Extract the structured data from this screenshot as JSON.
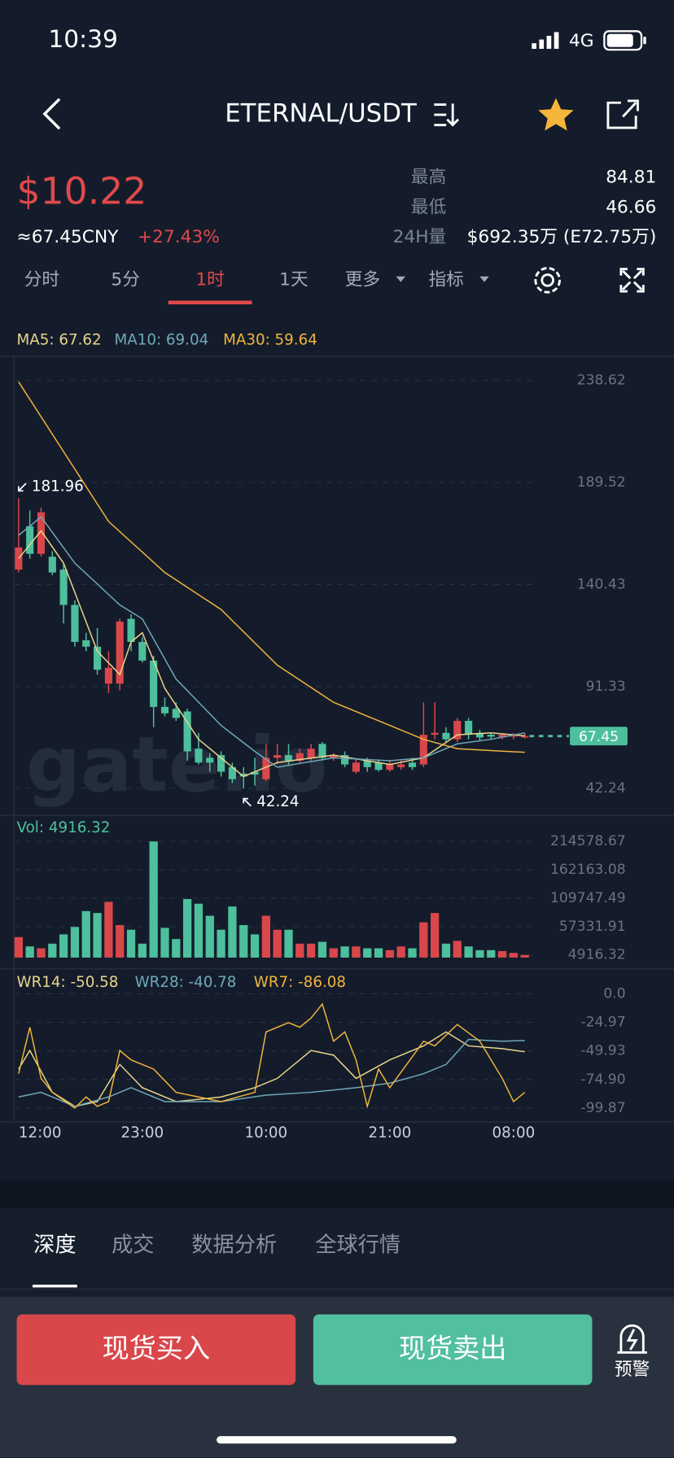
{
  "status_bar": {
    "time": "10:39",
    "network": "4G"
  },
  "header": {
    "title": "ETERNAL/USDT"
  },
  "ticker": {
    "price": "$10.22",
    "cny": "≈67.45CNY",
    "change": "+27.43%",
    "stats": [
      {
        "label": "最高",
        "value": "84.81"
      },
      {
        "label": "最低",
        "value": "46.66"
      },
      {
        "label": "24H量",
        "value": "$692.35万 (E72.75万)"
      }
    ]
  },
  "period_tabs": {
    "items": [
      "分时",
      "5分",
      "1时",
      "1天",
      "更多",
      "指标"
    ],
    "active": 2
  },
  "watermark": "gate.io",
  "chart_data": [
    {
      "type": "candlestick",
      "up_color": "#d9474b",
      "down_color": "#4dbf9c",
      "open": [
        147.6,
        168.5,
        155.2,
        153.8,
        147.6,
        130.6,
        113.6,
        110.5,
        92.7,
        92.7,
        123.9,
        112.8,
        103.8,
        81.5,
        80.6,
        79.3,
        61.4,
        57.0,
        58.3,
        52.5,
        49.4,
        50.3,
        46.7,
        57.0,
        58.3,
        55.6,
        57.0,
        63.7,
        57.0,
        58.3,
        50.3,
        55.6,
        54.7,
        51.2,
        52.5,
        54.7,
        53.8,
        68.1,
        69.0,
        65.9,
        74.8,
        69.0,
        68.1,
        66.8,
        67.2,
        66.8
      ],
      "high": [
        181.96,
        176.1,
        177.5,
        156.5,
        150.7,
        132.8,
        117.2,
        119.4,
        108.3,
        123.9,
        126.1,
        115.0,
        106.1,
        86.0,
        83.7,
        80.6,
        69.0,
        59.2,
        60.1,
        54.7,
        52.5,
        57.0,
        63.7,
        63.7,
        63.7,
        61.4,
        63.7,
        64.6,
        59.2,
        60.1,
        57.0,
        57.0,
        55.6,
        55.6,
        55.6,
        57.0,
        83.7,
        83.7,
        71.7,
        76.2,
        76.2,
        70.4,
        69.0,
        69.0,
        69.0,
        69.0
      ],
      "low": [
        146.2,
        152.9,
        153.8,
        144.9,
        121.7,
        110.5,
        108.3,
        97.1,
        88.2,
        89.5,
        108.3,
        102.9,
        71.7,
        77.0,
        74.8,
        55.6,
        53.8,
        50.3,
        48.0,
        44.9,
        42.24,
        43.6,
        45.8,
        53.8,
        53.8,
        54.7,
        55.6,
        55.6,
        55.6,
        52.5,
        49.4,
        50.3,
        50.3,
        50.3,
        51.2,
        51.2,
        52.5,
        65.9,
        64.6,
        64.6,
        65.9,
        65.4,
        65.9,
        65.9,
        65.9,
        66.3
      ],
      "close": [
        158.3,
        155.2,
        175.2,
        146.2,
        130.6,
        112.8,
        110.5,
        99.4,
        100.3,
        122.6,
        112.8,
        103.8,
        81.5,
        78.4,
        76.2,
        60.1,
        54.7,
        54.7,
        50.3,
        46.7,
        48.0,
        48.9,
        57.0,
        58.3,
        55.6,
        59.2,
        61.4,
        57.0,
        58.3,
        53.8,
        54.7,
        52.5,
        51.2,
        53.8,
        53.8,
        52.5,
        68.1,
        69.0,
        65.9,
        74.8,
        68.1,
        66.8,
        67.2,
        68.1,
        68.1,
        67.45
      ],
      "overlays": [
        {
          "name": "MA5: 67.62",
          "color": "#e8d48b",
          "x": [
            0,
            2,
            4,
            7,
            9,
            10,
            11,
            13,
            16,
            20,
            23,
            28,
            33,
            36,
            39,
            42,
            45
          ],
          "values": [
            152.9,
            166.3,
            150.7,
            108.3,
            97.1,
            112.8,
            117.2,
            90.4,
            65.9,
            48.0,
            54.7,
            58.3,
            53.8,
            57.0,
            68.1,
            69.0,
            67.62
          ]
        },
        {
          "name": "MA10: 69.04",
          "color": "#6fa8b8",
          "x": [
            0,
            2,
            5,
            9,
            11,
            14,
            18,
            21,
            23,
            28,
            33,
            36,
            39,
            42,
            45
          ],
          "values": [
            164.1,
            173.0,
            150.7,
            130.6,
            123.9,
            94.9,
            72.6,
            60.1,
            52.5,
            57.0,
            55.6,
            57.0,
            63.7,
            65.9,
            69.04
          ]
        },
        {
          "name": "MA30: 59.64",
          "color": "#f0b43c",
          "x": [
            0,
            8,
            13,
            18,
            23,
            28,
            33,
            36,
            39,
            45
          ],
          "values": [
            238.0,
            170.8,
            146.2,
            128.4,
            101.6,
            83.7,
            72.6,
            65.9,
            61.4,
            59.64
          ]
        }
      ],
      "ylim": [
        42.24,
        238.62
      ],
      "yticks": [
        42.24,
        91.33,
        140.43,
        189.52,
        238.62
      ],
      "grid": true
    },
    {
      "type": "bar",
      "title": "Vol: 4916.32",
      "values": [
        37765,
        20599,
        17166,
        25749,
        42915,
        56648,
        85830,
        82397,
        102996,
        60081,
        51498,
        25749,
        214578.67,
        54931,
        34332,
        108146,
        99563,
        77247,
        51498,
        94413,
        60081,
        42915,
        77247,
        51498,
        51498,
        25749,
        25749,
        29182,
        17166,
        20599,
        20599,
        17166,
        17166,
        13733,
        20599,
        17166,
        65231,
        82397,
        25749,
        30899,
        20599,
        13733,
        13733,
        12016,
        8583,
        4916.32
      ],
      "ylim": [
        0,
        214578.67
      ],
      "yticks": [
        4916.32,
        57331.91,
        109747.49,
        162163.08,
        214578.67
      ],
      "grid": true
    },
    {
      "type": "line",
      "series": [
        {
          "name": "WR14: -50.58",
          "color": "#e8d48b",
          "x": [
            0,
            1,
            3,
            5,
            7,
            9,
            11,
            14,
            18,
            21,
            23,
            26,
            28,
            30,
            33,
            36,
            38,
            40,
            43,
            45
          ],
          "values": [
            -65.8,
            -49.5,
            -86.1,
            -98.3,
            -94.2,
            -61.7,
            -82.0,
            -94.2,
            -90.1,
            -82.0,
            -73.9,
            -49.5,
            -53.6,
            -73.9,
            -57.7,
            -45.5,
            -33.3,
            -45.5,
            -47.9,
            -50.58
          ]
        },
        {
          "name": "WR28: -40.78",
          "color": "#6fa8b8",
          "x": [
            0,
            2,
            5,
            8,
            10,
            13,
            18,
            22,
            26,
            30,
            33,
            36,
            38,
            40,
            43,
            45
          ],
          "values": [
            -90.1,
            -86.1,
            -98.3,
            -90.1,
            -82.0,
            -94.2,
            -94.2,
            -88.5,
            -86.1,
            -82.0,
            -78.0,
            -69.8,
            -61.7,
            -39.8,
            -41.4,
            -40.78
          ]
        },
        {
          "name": "WR7: -86.08",
          "color": "#f0b43c",
          "x": [
            0,
            1,
            2,
            3,
            5,
            6,
            7,
            8,
            9,
            10,
            12,
            14,
            16,
            18,
            21,
            22,
            24,
            25,
            26,
            27,
            28,
            29,
            30,
            31,
            32,
            33,
            36,
            37,
            39,
            41,
            43,
            44,
            45
          ],
          "values": [
            -69.8,
            -29.2,
            -73.9,
            -86.1,
            -99.87,
            -90.1,
            -98.3,
            -94.2,
            -49.5,
            -57.7,
            -65.8,
            -86.1,
            -90.1,
            -94.2,
            -86.1,
            -33.3,
            -25.2,
            -29.2,
            -21.1,
            -8.9,
            -41.4,
            -33.3,
            -57.7,
            -98.3,
            -65.8,
            -82.0,
            -41.4,
            -45.5,
            -26.8,
            -41.4,
            -73.9,
            -94.2,
            -86.08
          ]
        }
      ],
      "ylim": [
        -99.87,
        0
      ],
      "yticks": [
        {
          "value": 0,
          "label": "0.0"
        },
        -24.97,
        -49.93,
        {
          "value": -74.9,
          "label": "-74.90"
        },
        -99.87
      ],
      "xticks": [
        {
          "value": 0,
          "label": "12:00"
        },
        {
          "value": 11,
          "label": "23:00"
        },
        {
          "value": 22,
          "label": "10:00"
        },
        {
          "value": 33,
          "label": "21:00"
        },
        {
          "value": 44,
          "label": "08:00"
        }
      ],
      "grid": true
    }
  ],
  "bottom_tabs": {
    "items": [
      "深度",
      "成交",
      "数据分析",
      "全球行情"
    ],
    "active": 0
  },
  "actions": {
    "buy": "现货买入",
    "sell": "现货卖出",
    "alert": "预警"
  }
}
